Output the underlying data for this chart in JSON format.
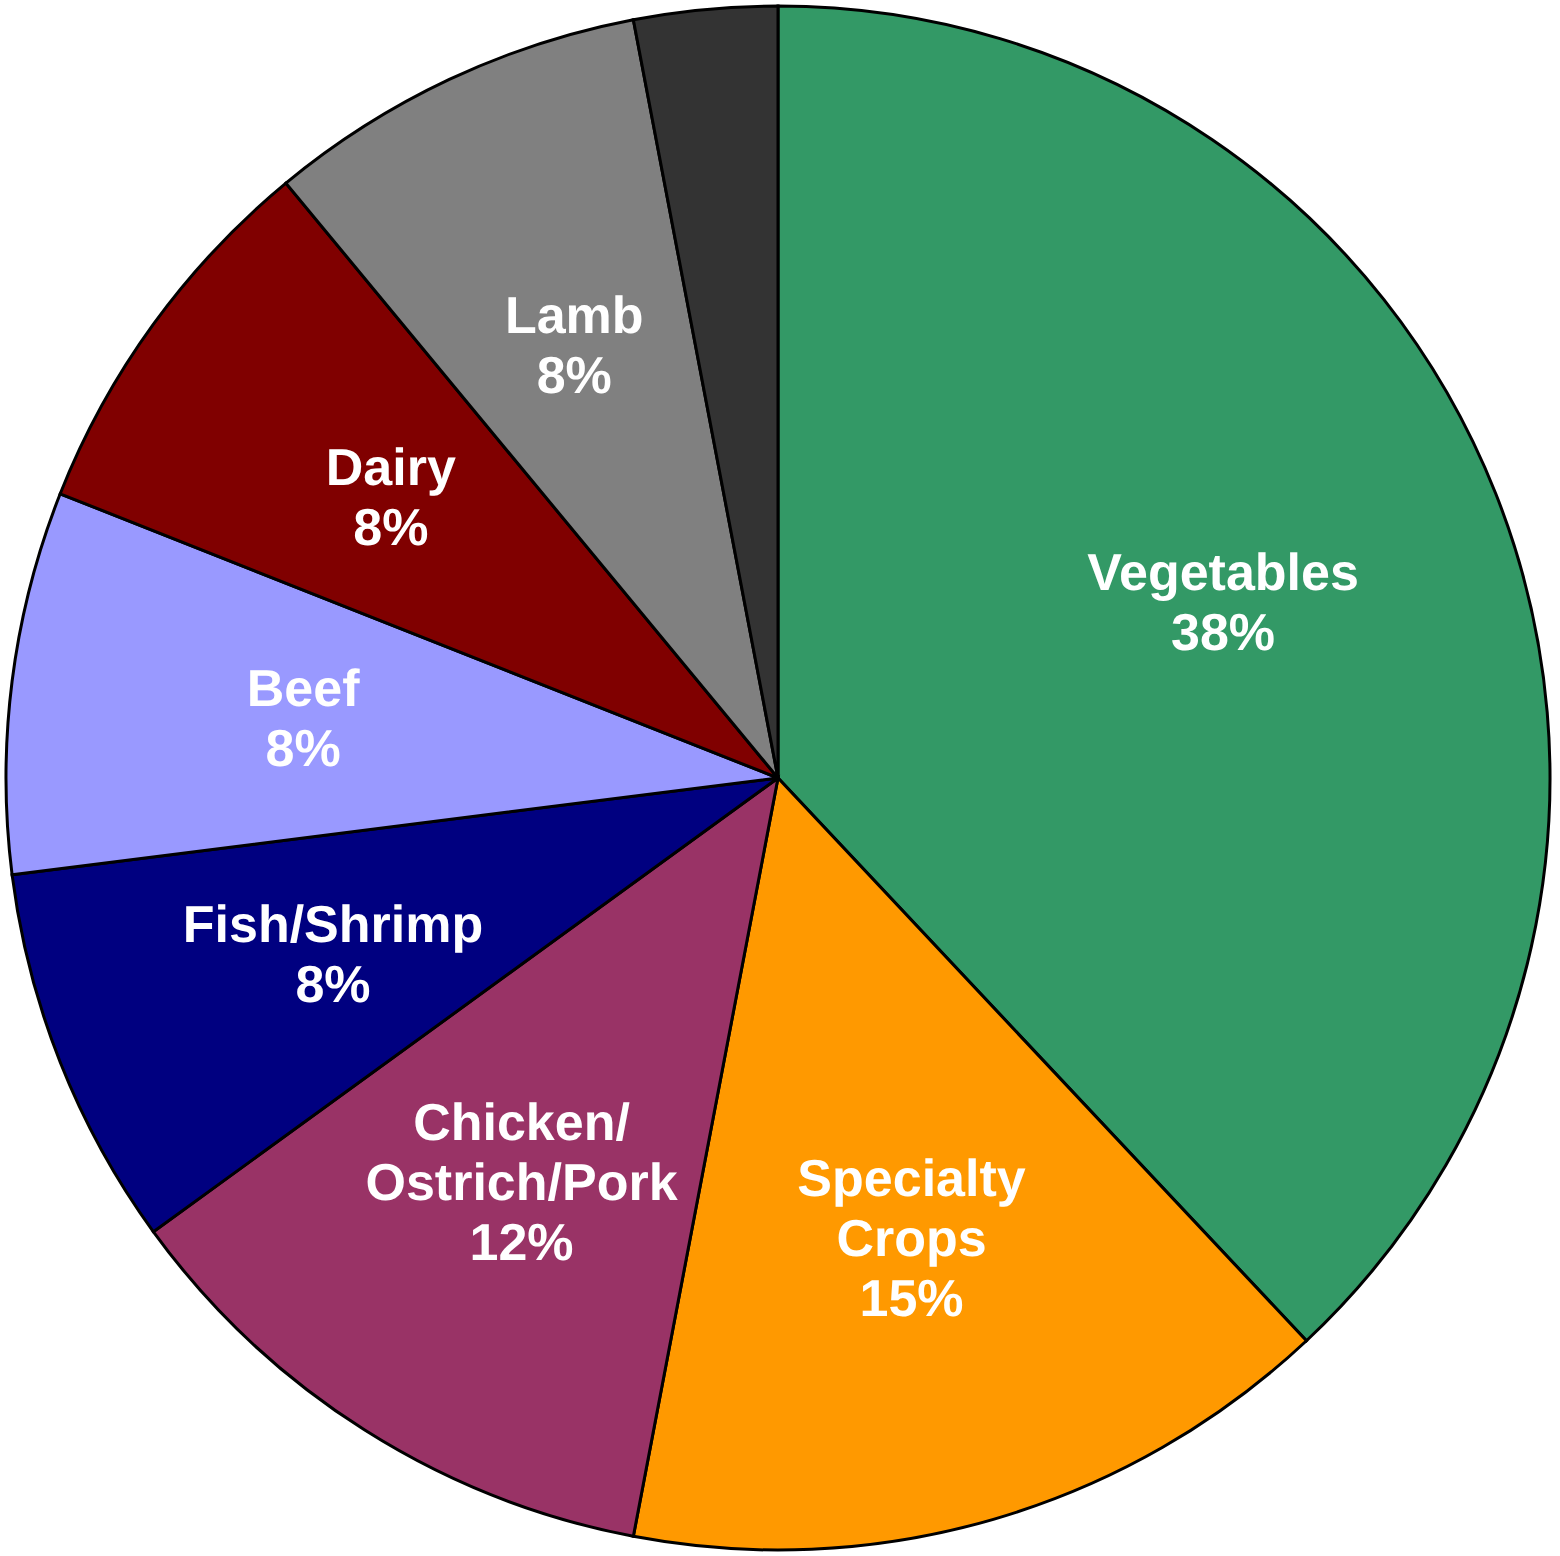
{
  "chart_data": {
    "type": "pie",
    "categories": [
      "Vegetables",
      "Specialty Crops",
      "Chicken/Ostrich/Pork",
      "Fish/Shrimp",
      "Beef",
      "Dairy",
      "Lamb",
      null
    ],
    "values": [
      38,
      15,
      12,
      8,
      8,
      8,
      8,
      3
    ],
    "value_labels": [
      "38%",
      "15%",
      "12%",
      "8%",
      "8%",
      "8%",
      "8%",
      null
    ],
    "colors": [
      "#339966",
      "#ff9900",
      "#993366",
      "#000080",
      "#9999ff",
      "#800000",
      "#808080",
      "#333333"
    ],
    "legend": false
  }
}
